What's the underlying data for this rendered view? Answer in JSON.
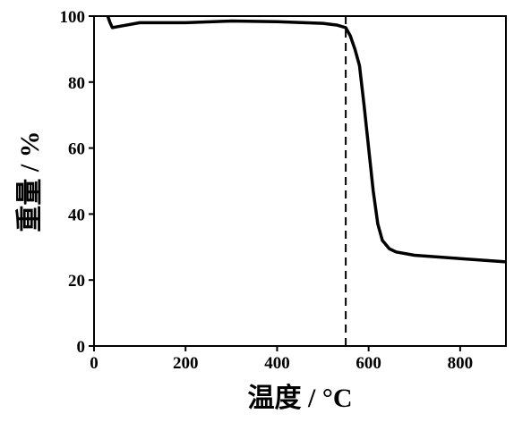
{
  "chart_data": {
    "type": "line",
    "x_label": "温度 / °C",
    "y_label": "重量 / %",
    "xlim": [
      0,
      900
    ],
    "xticks": [
      0,
      200,
      400,
      600,
      800
    ],
    "ylim": [
      0,
      100
    ],
    "yticks": [
      0,
      20,
      40,
      60,
      80,
      100
    ],
    "vlines": [
      550
    ],
    "series": [
      {
        "color": "#000000",
        "x": [
          30,
          35,
          40,
          60,
          100,
          200,
          300,
          400,
          500,
          530,
          550,
          560,
          570,
          580,
          590,
          600,
          610,
          620,
          630,
          645,
          660,
          700,
          800,
          900
        ],
        "values": [
          100,
          98,
          96.5,
          97,
          98,
          98,
          98.5,
          98.3,
          97.8,
          97.3,
          96.5,
          94,
          90,
          85,
          73,
          60,
          47,
          37,
          32,
          29.5,
          28.5,
          27.5,
          26.5,
          25.5
        ]
      }
    ]
  }
}
